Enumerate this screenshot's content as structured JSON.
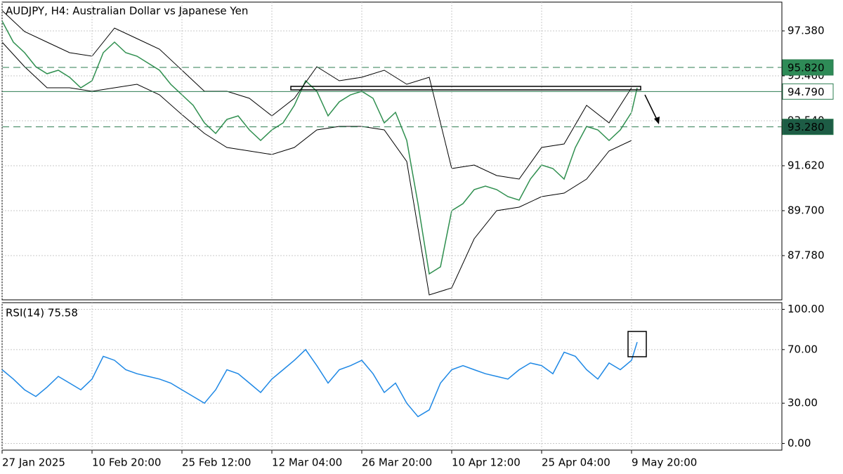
{
  "chart_data": [
    {
      "type": "line",
      "title": "AUDJPY, H4:  Australian Dollar vs Japanese Yen",
      "xlim": [
        0,
        277.5
      ],
      "ylim": [
        85.89,
        98.61
      ],
      "yticks": [
        {
          "value": 97.38,
          "label": "97.380"
        },
        {
          "value": 95.46,
          "label": "95.460"
        },
        {
          "value": 93.54,
          "label": "93.540"
        },
        {
          "value": 91.62,
          "label": "91.620"
        },
        {
          "value": 89.7,
          "label": "89.700"
        },
        {
          "value": 87.78,
          "label": "87.780"
        }
      ],
      "grid": true,
      "series": [
        {
          "color": "#2f8f4f",
          "x": [
            0,
            4,
            8,
            12,
            16,
            20,
            24,
            28,
            32,
            36,
            40,
            44,
            48,
            52,
            56,
            60,
            64,
            68,
            72,
            76,
            80,
            84,
            88,
            92,
            96,
            100,
            104,
            108,
            112,
            116,
            120,
            124,
            128,
            132,
            136,
            140,
            144,
            148,
            152,
            156,
            160,
            164,
            168,
            172,
            176,
            180,
            184,
            188,
            192,
            196,
            200,
            204,
            208,
            212,
            216,
            220,
            224,
            226
          ],
          "values": [
            97.8,
            96.9,
            96.45,
            95.85,
            95.55,
            95.7,
            95.4,
            94.95,
            95.25,
            96.45,
            96.9,
            96.45,
            96.3,
            96.0,
            95.7,
            95.1,
            94.65,
            94.2,
            93.45,
            93.0,
            93.6,
            93.75,
            93.15,
            92.7,
            93.15,
            93.45,
            94.2,
            95.25,
            94.8,
            93.75,
            94.35,
            94.65,
            94.8,
            94.5,
            93.45,
            93.9,
            92.7,
            90.0,
            87.0,
            87.3,
            89.7,
            90.0,
            90.6,
            90.75,
            90.6,
            90.3,
            90.15,
            91.05,
            91.65,
            91.5,
            91.05,
            92.4,
            93.3,
            93.15,
            92.7,
            93.15,
            93.9,
            94.95
          ]
        },
        {
          "color": "#000000",
          "x": [
            0,
            8,
            16,
            24,
            32,
            40,
            48,
            56,
            64,
            72,
            80,
            88,
            96,
            104,
            112,
            120,
            128,
            136,
            144,
            152,
            160,
            168,
            176,
            184,
            192,
            200,
            208,
            216,
            224
          ],
          "values": [
            98.25,
            97.35,
            96.9,
            96.45,
            96.3,
            97.5,
            97.05,
            96.6,
            95.7,
            94.8,
            94.8,
            94.5,
            93.75,
            94.5,
            95.85,
            95.25,
            95.4,
            95.7,
            95.1,
            95.4,
            91.5,
            91.65,
            91.2,
            91.05,
            92.4,
            92.55,
            94.2,
            93.45,
            94.95
          ]
        },
        {
          "color": "#000000",
          "x": [
            0,
            8,
            16,
            24,
            32,
            40,
            48,
            56,
            64,
            72,
            80,
            88,
            96,
            104,
            112,
            120,
            128,
            136,
            144,
            152,
            160,
            168,
            176,
            184,
            192,
            200,
            208,
            216,
            224
          ],
          "values": [
            96.9,
            95.85,
            94.95,
            94.95,
            94.8,
            94.95,
            95.1,
            94.65,
            93.8,
            93.0,
            92.4,
            92.25,
            92.1,
            92.4,
            93.15,
            93.3,
            93.3,
            93.15,
            91.8,
            86.1,
            86.4,
            88.5,
            89.7,
            89.85,
            90.3,
            90.45,
            91.05,
            92.25,
            92.7
          ]
        }
      ],
      "levels": [
        {
          "value": 95.82,
          "label": "95.820",
          "style": "dashed",
          "color": "#2e8b57",
          "text_color": "#ffffff"
        },
        {
          "value": 94.79,
          "label": "94.790",
          "style": "solid",
          "color": "#ffffff",
          "text_color": "#000000"
        },
        {
          "value": 93.28,
          "label": "93.280",
          "style": "dashed",
          "color": "#1d5c45",
          "text_color": "#ffffff"
        }
      ]
    },
    {
      "type": "line",
      "title": "RSI(14) 75.58",
      "xlim": [
        0,
        277.5
      ],
      "ylim": [
        -5,
        105
      ],
      "xticks": [
        {
          "value": 0,
          "label": "27 Jan 2025"
        },
        {
          "value": 32,
          "label": "10 Feb 20:00"
        },
        {
          "value": 64,
          "label": "25 Feb 12:00"
        },
        {
          "value": 96,
          "label": "12 Mar 04:00"
        },
        {
          "value": 128,
          "label": "26 Mar 20:00"
        },
        {
          "value": 160,
          "label": "10 Apr 12:00"
        },
        {
          "value": 192,
          "label": "25 Apr 04:00"
        },
        {
          "value": 224,
          "label": "9 May 20:00"
        }
      ],
      "yticks": [
        {
          "value": 100,
          "label": "100.00"
        },
        {
          "value": 70,
          "label": "70.00"
        },
        {
          "value": 30,
          "label": "30.00"
        },
        {
          "value": 0,
          "label": "0.00"
        }
      ],
      "grid": true,
      "series": [
        {
          "color": "#1e88e5",
          "x": [
            0,
            4,
            8,
            12,
            16,
            20,
            24,
            28,
            32,
            36,
            40,
            44,
            48,
            52,
            56,
            60,
            64,
            68,
            72,
            76,
            80,
            84,
            88,
            92,
            96,
            100,
            104,
            108,
            112,
            116,
            120,
            124,
            128,
            132,
            136,
            140,
            144,
            148,
            152,
            156,
            160,
            164,
            168,
            172,
            176,
            180,
            184,
            188,
            192,
            196,
            200,
            204,
            208,
            212,
            216,
            220,
            224,
            226
          ],
          "values": [
            55,
            48,
            40,
            35,
            42,
            50,
            45,
            40,
            48,
            65,
            62,
            55,
            52,
            50,
            48,
            45,
            40,
            35,
            30,
            40,
            55,
            52,
            45,
            38,
            48,
            55,
            62,
            70,
            58,
            45,
            55,
            58,
            62,
            52,
            38,
            45,
            30,
            20,
            25,
            45,
            55,
            58,
            55,
            52,
            50,
            48,
            55,
            60,
            58,
            52,
            68,
            65,
            55,
            48,
            60,
            55,
            62,
            75.58
          ]
        }
      ]
    }
  ]
}
